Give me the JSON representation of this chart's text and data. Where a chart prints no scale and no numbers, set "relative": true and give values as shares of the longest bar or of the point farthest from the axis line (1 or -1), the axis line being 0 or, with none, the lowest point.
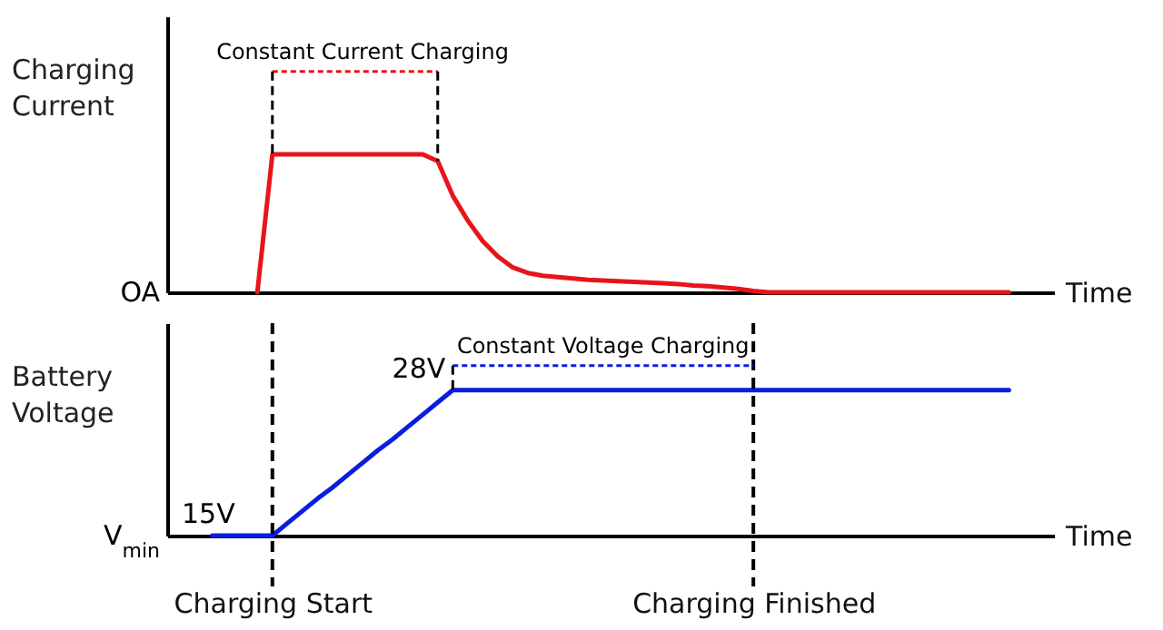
{
  "chart_data": [
    {
      "type": "line",
      "ylabel": "Charging Current",
      "xlabel": "Time",
      "relative": true,
      "tick_labels": false,
      "categories": [
        null,
        null,
        null,
        null,
        null,
        null,
        null,
        null,
        null,
        null,
        null,
        null,
        null,
        null,
        null,
        null,
        null,
        null,
        null,
        null,
        null,
        null,
        null,
        null,
        null,
        null,
        null,
        null,
        null,
        null,
        null,
        null,
        null,
        null,
        null,
        null,
        null,
        null,
        null,
        null,
        null,
        null,
        null,
        null,
        null,
        null,
        null,
        null,
        null,
        null,
        null,
        null,
        null,
        null,
        null,
        null,
        null,
        null,
        null,
        null
      ],
      "series": [
        {
          "color": "#e8141b",
          "values": [
            null,
            null,
            null,
            null,
            null,
            null,
            0,
            1,
            1,
            1,
            1,
            1,
            1,
            1,
            1,
            1,
            1,
            1,
            0.95,
            0.7,
            0.52,
            0.37,
            0.26,
            0.18,
            0.14,
            0.12,
            0.11,
            0.1,
            0.09,
            0.085,
            0.08,
            0.075,
            0.07,
            0.065,
            0.06,
            0.05,
            0.045,
            0.035,
            0.025,
            0.01,
            0,
            0,
            0,
            0,
            0,
            0,
            0,
            0,
            0,
            0,
            0,
            0,
            0,
            0,
            0,
            0,
            0,
            null,
            null,
            null
          ]
        }
      ],
      "annotations": [
        "Constant Current Charging",
        "OA"
      ]
    },
    {
      "type": "line",
      "ylabel": "Battery Voltage",
      "xlabel": "Time",
      "categories": [
        null,
        null,
        null,
        null,
        null,
        null,
        null,
        "Charging Start",
        null,
        null,
        null,
        null,
        null,
        null,
        null,
        null,
        null,
        null,
        null,
        null,
        null,
        null,
        null,
        null,
        null,
        null,
        null,
        null,
        null,
        null,
        null,
        null,
        null,
        null,
        null,
        null,
        null,
        null,
        null,
        "Charging Finished",
        null,
        null,
        null,
        null,
        null,
        null,
        null,
        null,
        null,
        null,
        null,
        null,
        null,
        null,
        null,
        null,
        null,
        null,
        null,
        null
      ],
      "series": [
        {
          "color": "#0a1ee0",
          "values": [
            null,
            null,
            null,
            15,
            15,
            15,
            15,
            15,
            16.1,
            17.2,
            18.3,
            19.3,
            20.4,
            21.5,
            22.6,
            23.6,
            24.7,
            25.8,
            26.9,
            28,
            28,
            28,
            28,
            28,
            28,
            28,
            28,
            28,
            28,
            28,
            28,
            28,
            28,
            28,
            28,
            28,
            28,
            28,
            28,
            28,
            28,
            28,
            28,
            28,
            28,
            28,
            28,
            28,
            28,
            28,
            28,
            28,
            28,
            28,
            28,
            28,
            28,
            null,
            null,
            null
          ],
          "value_labels": [
            null,
            null,
            null,
            null,
            null,
            "15V",
            null,
            null,
            null,
            null,
            null,
            null,
            null,
            null,
            null,
            null,
            null,
            null,
            null,
            "28V",
            null,
            null,
            null,
            null,
            null,
            null,
            null,
            null,
            null,
            null,
            null,
            null,
            null,
            null,
            null,
            null,
            null,
            null,
            null,
            null,
            null,
            null,
            null,
            null,
            null,
            null,
            null,
            null,
            null,
            null,
            null,
            null,
            null,
            null,
            null,
            null,
            null,
            null,
            null,
            null
          ]
        }
      ],
      "ref_lines": [
        {
          "axis": "x",
          "value": "Charging Start"
        },
        {
          "axis": "x",
          "value": "Charging Finished"
        }
      ],
      "annotations": [
        "Constant Voltage Charging",
        "V$_{min}$"
      ]
    }
  ]
}
